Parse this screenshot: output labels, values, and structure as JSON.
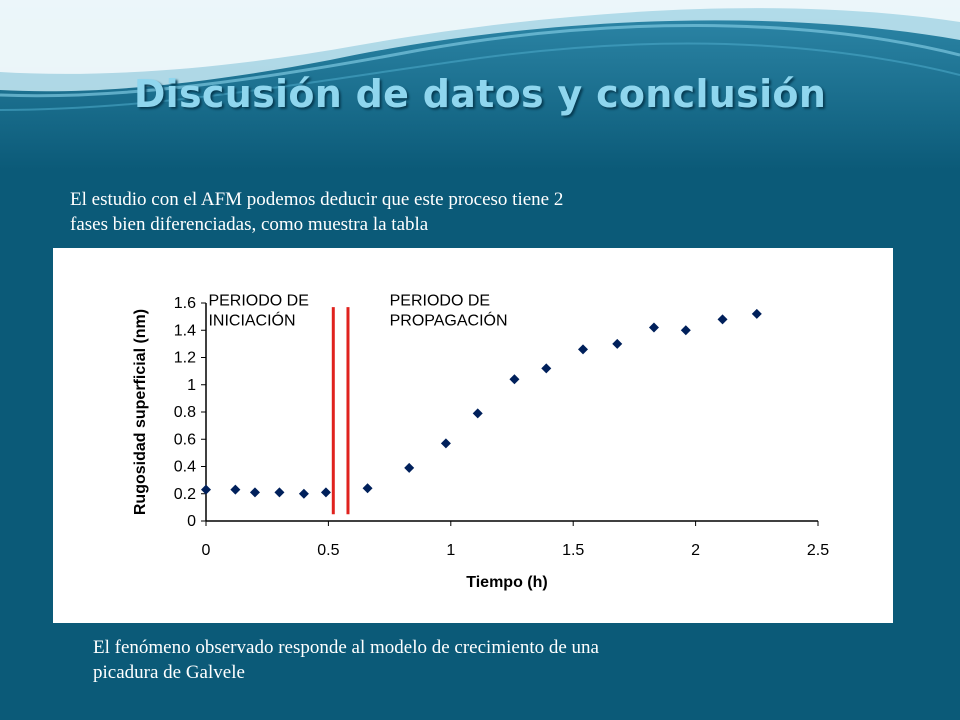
{
  "slide": {
    "title": "Discusión de datos y conclusión",
    "intro_line1": "El estudio con el AFM podemos deducir que este proceso tiene 2",
    "intro_line2": "fases bien diferenciadas, como muestra la tabla",
    "conclusion_line1": "El fenómeno observado responde al modelo de crecimiento de una",
    "conclusion_line2": "picadura de Galvele"
  },
  "colors": {
    "background": "#0b5a78",
    "title": "#8fd6ee",
    "marker": "#00205b",
    "divider": "#e0221e"
  },
  "chart_data": {
    "type": "scatter",
    "xlabel": "Tiempo (h)",
    "ylabel": "Rugosidad superficial (nm)",
    "xlim": [
      0,
      2.5
    ],
    "ylim": [
      0,
      1.6
    ],
    "x_ticks": [
      0,
      0.5,
      1,
      1.5,
      2,
      2.5
    ],
    "x_tick_labels": [
      "0",
      "0.5",
      "1",
      "1.5",
      "2",
      "2.5"
    ],
    "y_ticks": [
      0,
      0.2,
      0.4,
      0.6,
      0.8,
      1,
      1.2,
      1.4,
      1.6
    ],
    "y_tick_labels": [
      "0",
      "0.2",
      "0.4",
      "0.6",
      "0.8",
      "1",
      "1.2",
      "1.4",
      "1.6"
    ],
    "grid": false,
    "marker": "diamond",
    "points": [
      {
        "x": 0.0,
        "y": 0.23
      },
      {
        "x": 0.12,
        "y": 0.23
      },
      {
        "x": 0.2,
        "y": 0.21
      },
      {
        "x": 0.3,
        "y": 0.21
      },
      {
        "x": 0.4,
        "y": 0.2
      },
      {
        "x": 0.49,
        "y": 0.21
      },
      {
        "x": 0.66,
        "y": 0.24
      },
      {
        "x": 0.83,
        "y": 0.39
      },
      {
        "x": 0.98,
        "y": 0.57
      },
      {
        "x": 1.11,
        "y": 0.79
      },
      {
        "x": 1.26,
        "y": 1.04
      },
      {
        "x": 1.39,
        "y": 1.12
      },
      {
        "x": 1.54,
        "y": 1.26
      },
      {
        "x": 1.68,
        "y": 1.3
      },
      {
        "x": 1.83,
        "y": 1.42
      },
      {
        "x": 1.96,
        "y": 1.4
      },
      {
        "x": 2.11,
        "y": 1.48
      },
      {
        "x": 2.25,
        "y": 1.52
      }
    ],
    "dividers": [
      {
        "x": 0.52,
        "y_from": 0.05,
        "y_to": 1.57
      },
      {
        "x": 0.58,
        "y_from": 0.05,
        "y_to": 1.57
      }
    ],
    "annotations": [
      {
        "lines": [
          "PERIODO DE",
          "INICIACIÓN"
        ],
        "x": 0.01,
        "y": 1.58
      },
      {
        "lines": [
          "PERIODO DE",
          "PROPAGACIÓN"
        ],
        "x": 0.75,
        "y": 1.58
      }
    ]
  }
}
